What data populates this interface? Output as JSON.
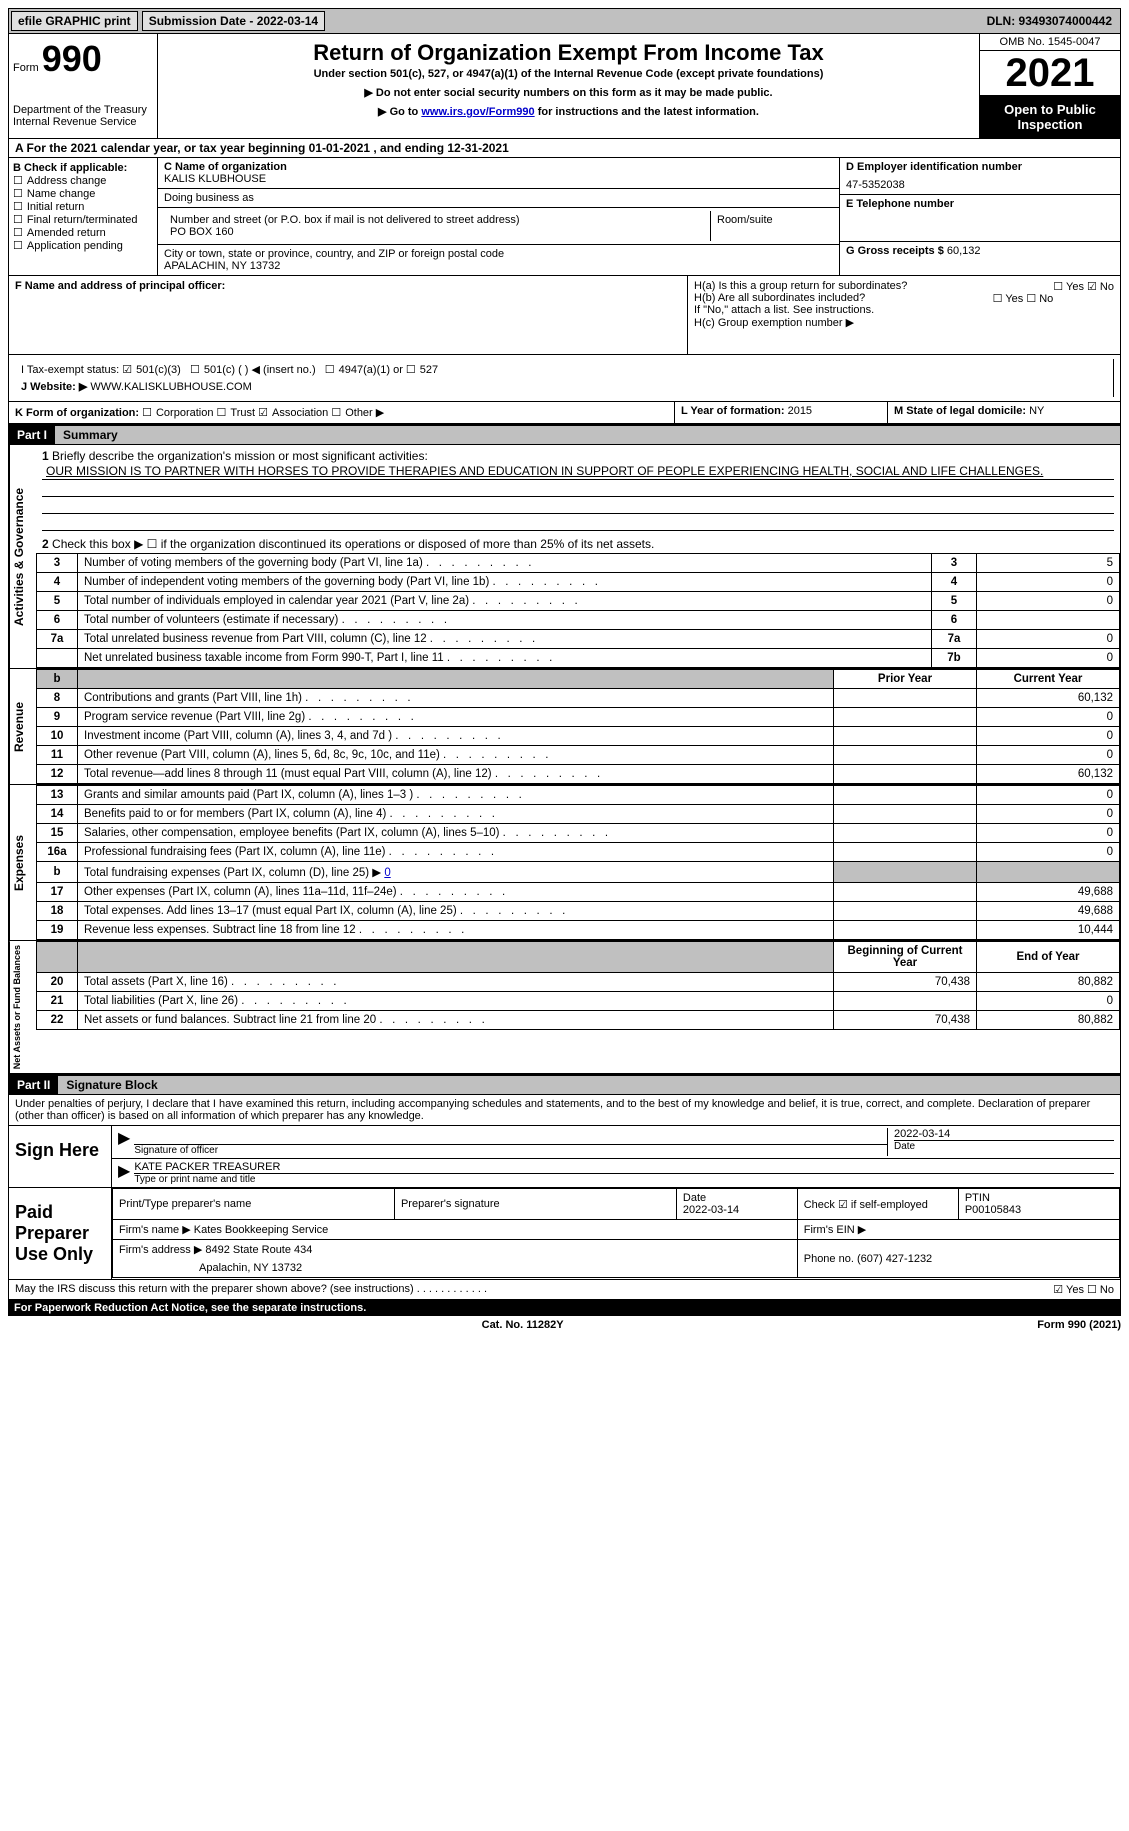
{
  "topbar": {
    "efile": "efile GRAPHIC print",
    "submission_label": "Submission Date - 2022-03-14",
    "dln": "DLN: 93493074000442"
  },
  "header": {
    "form_word": "Form",
    "form_num": "990",
    "dept": "Department of the Treasury",
    "irs": "Internal Revenue Service",
    "title": "Return of Organization Exempt From Income Tax",
    "under": "Under section 501(c), 527, or 4947(a)(1) of the Internal Revenue Code (except private foundations)",
    "ssn": "▶ Do not enter social security numbers on this form as it may be made public.",
    "goto_pre": "▶ Go to ",
    "goto_link": "www.irs.gov/Form990",
    "goto_post": " for instructions and the latest information.",
    "omb": "OMB No. 1545-0047",
    "year": "2021",
    "open": "Open to Public Inspection"
  },
  "period": "A For the 2021 calendar year, or tax year beginning 01-01-2021   , and ending 12-31-2021",
  "B": {
    "label": "B Check if applicable:",
    "opts": [
      "Address change",
      "Name change",
      "Initial return",
      "Final return/terminated",
      "Amended return",
      "Application pending"
    ]
  },
  "C": {
    "name_label": "C Name of organization",
    "name": "KALIS KLUBHOUSE",
    "dba_label": "Doing business as",
    "addr_label": "Number and street (or P.O. box if mail is not delivered to street address)",
    "addr": "PO BOX 160",
    "room_label": "Room/suite",
    "city_label": "City or town, state or province, country, and ZIP or foreign postal code",
    "city": "APALACHIN, NY  13732"
  },
  "D": {
    "ein_label": "D Employer identification number",
    "ein": "47-5352038",
    "tel_label": "E Telephone number",
    "gross_label": "G Gross receipts $",
    "gross": "60,132"
  },
  "F": {
    "label": "F  Name and address of principal officer:"
  },
  "H": {
    "a": "H(a)  Is this a group return for subordinates?",
    "a_yesno": "☐ Yes  ☑ No",
    "b": "H(b)  Are all subordinates included?",
    "b_yesno": "☐ Yes  ☐ No",
    "b_note": "If \"No,\" attach a list. See instructions.",
    "c": "H(c)  Group exemption number ▶"
  },
  "I": {
    "label": "I   Tax-exempt status:",
    "c3": "501(c)(3)",
    "c": "501(c) (  ) ◀ (insert no.)",
    "a1": "4947(a)(1) or",
    "527": "527"
  },
  "J": {
    "label": "J   Website: ▶",
    "url": "WWW.KALISKLUBHOUSE.COM"
  },
  "K": {
    "label": "K Form of organization:",
    "corp": "Corporation",
    "trust": "Trust",
    "assoc": "Association",
    "other": "Other ▶"
  },
  "L": {
    "label": "L Year of formation:",
    "val": "2015"
  },
  "M": {
    "label": "M State of legal domicile:",
    "val": "NY"
  },
  "part1": {
    "bar": "Part I",
    "title": "Summary",
    "q1_label": "1",
    "q1_text": "Briefly describe the organization's mission or most significant activities:",
    "q1_val": "OUR MISSION IS TO PARTNER WITH HORSES TO PROVIDE THERAPIES AND EDUCATION IN SUPPORT OF PEOPLE EXPERIENCING HEALTH, SOCIAL AND LIFE CHALLENGES.",
    "q2": "Check this box ▶ ☐  if the organization discontinued its operations or disposed of more than 25% of its net assets.",
    "rowsA": [
      {
        "n": "3",
        "d": "Number of voting members of the governing body (Part VI, line 1a)",
        "b": "3",
        "v": "5"
      },
      {
        "n": "4",
        "d": "Number of independent voting members of the governing body (Part VI, line 1b)",
        "b": "4",
        "v": "0"
      },
      {
        "n": "5",
        "d": "Total number of individuals employed in calendar year 2021 (Part V, line 2a)",
        "b": "5",
        "v": "0"
      },
      {
        "n": "6",
        "d": "Total number of volunteers (estimate if necessary)",
        "b": "6",
        "v": ""
      },
      {
        "n": "7a",
        "d": "Total unrelated business revenue from Part VIII, column (C), line 12",
        "b": "7a",
        "v": "0"
      },
      {
        "n": "",
        "d": "Net unrelated business taxable income from Form 990-T, Part I, line 11",
        "b": "7b",
        "v": "0"
      }
    ],
    "pyhdr": "Prior Year",
    "cyhdr": "Current Year",
    "revenue_rows": [
      {
        "n": "8",
        "d": "Contributions and grants (Part VIII, line 1h)",
        "py": "",
        "cy": "60,132"
      },
      {
        "n": "9",
        "d": "Program service revenue (Part VIII, line 2g)",
        "py": "",
        "cy": "0"
      },
      {
        "n": "10",
        "d": "Investment income (Part VIII, column (A), lines 3, 4, and 7d )",
        "py": "",
        "cy": "0"
      },
      {
        "n": "11",
        "d": "Other revenue (Part VIII, column (A), lines 5, 6d, 8c, 9c, 10c, and 11e)",
        "py": "",
        "cy": "0"
      },
      {
        "n": "12",
        "d": "Total revenue—add lines 8 through 11 (must equal Part VIII, column (A), line 12)",
        "py": "",
        "cy": "60,132"
      }
    ],
    "expense_rows": [
      {
        "n": "13",
        "d": "Grants and similar amounts paid (Part IX, column (A), lines 1–3 )",
        "py": "",
        "cy": "0"
      },
      {
        "n": "14",
        "d": "Benefits paid to or for members (Part IX, column (A), line 4)",
        "py": "",
        "cy": "0"
      },
      {
        "n": "15",
        "d": "Salaries, other compensation, employee benefits (Part IX, column (A), lines 5–10)",
        "py": "",
        "cy": "0"
      },
      {
        "n": "16a",
        "d": "Professional fundraising fees (Part IX, column (A), line 11e)",
        "py": "",
        "cy": "0"
      }
    ],
    "line_b": {
      "n": "b",
      "d": "Total fundraising expenses (Part IX, column (D), line 25) ▶",
      "v": "0"
    },
    "expense_rows2": [
      {
        "n": "17",
        "d": "Other expenses (Part IX, column (A), lines 11a–11d, 11f–24e)",
        "py": "",
        "cy": "49,688"
      },
      {
        "n": "18",
        "d": "Total expenses. Add lines 13–17 (must equal Part IX, column (A), line 25)",
        "py": "",
        "cy": "49,688"
      },
      {
        "n": "19",
        "d": "Revenue less expenses. Subtract line 18 from line 12",
        "py": "",
        "cy": "10,444"
      }
    ],
    "bcy": "Beginning of Current Year",
    "eoy": "End of Year",
    "net_rows": [
      {
        "n": "20",
        "d": "Total assets (Part X, line 16)",
        "py": "70,438",
        "cy": "80,882"
      },
      {
        "n": "21",
        "d": "Total liabilities (Part X, line 26)",
        "py": "",
        "cy": "0"
      },
      {
        "n": "22",
        "d": "Net assets or fund balances. Subtract line 21 from line 20",
        "py": "70,438",
        "cy": "80,882"
      }
    ],
    "side_labels": {
      "ag": "Activities & Governance",
      "rev": "Revenue",
      "exp": "Expenses",
      "net": "Net Assets or Fund Balances"
    }
  },
  "part2": {
    "bar": "Part II",
    "title": "Signature Block",
    "penalty": "Under penalties of perjury, I declare that I have examined this return, including accompanying schedules and statements, and to the best of my knowledge and belief, it is true, correct, and complete. Declaration of preparer (other than officer) is based on all information of which preparer has any knowledge.",
    "sign_here": "Sign Here",
    "sig_officer": "Signature of officer",
    "sig_date": "2022-03-14",
    "date_lbl": "Date",
    "printed": "KATE PACKER  TREASURER",
    "printed_lbl": "Type or print name and title",
    "paid": "Paid Preparer Use Only",
    "prep_name_lbl": "Print/Type preparer's name",
    "prep_sig_lbl": "Preparer's signature",
    "prep_date_lbl": "Date",
    "prep_date": "2022-03-14",
    "check_if": "Check ☑ if self-employed",
    "ptin_lbl": "PTIN",
    "ptin": "P00105843",
    "firm_name_lbl": "Firm's name   ▶",
    "firm_name": "Kates Bookkeeping Service",
    "firm_ein_lbl": "Firm's EIN ▶",
    "firm_addr_lbl": "Firm's address ▶",
    "firm_addr": "8492 State Route 434",
    "firm_city": "Apalachin, NY  13732",
    "phone_lbl": "Phone no.",
    "phone": "(607) 427-1232",
    "discuss": "May the IRS discuss this return with the preparer shown above? (see instructions)",
    "discuss_yn": "☑ Yes   ☐ No"
  },
  "footer": {
    "pra": "For Paperwork Reduction Act Notice, see the separate instructions.",
    "cat": "Cat. No. 11282Y",
    "form": "Form 990 (2021)"
  }
}
